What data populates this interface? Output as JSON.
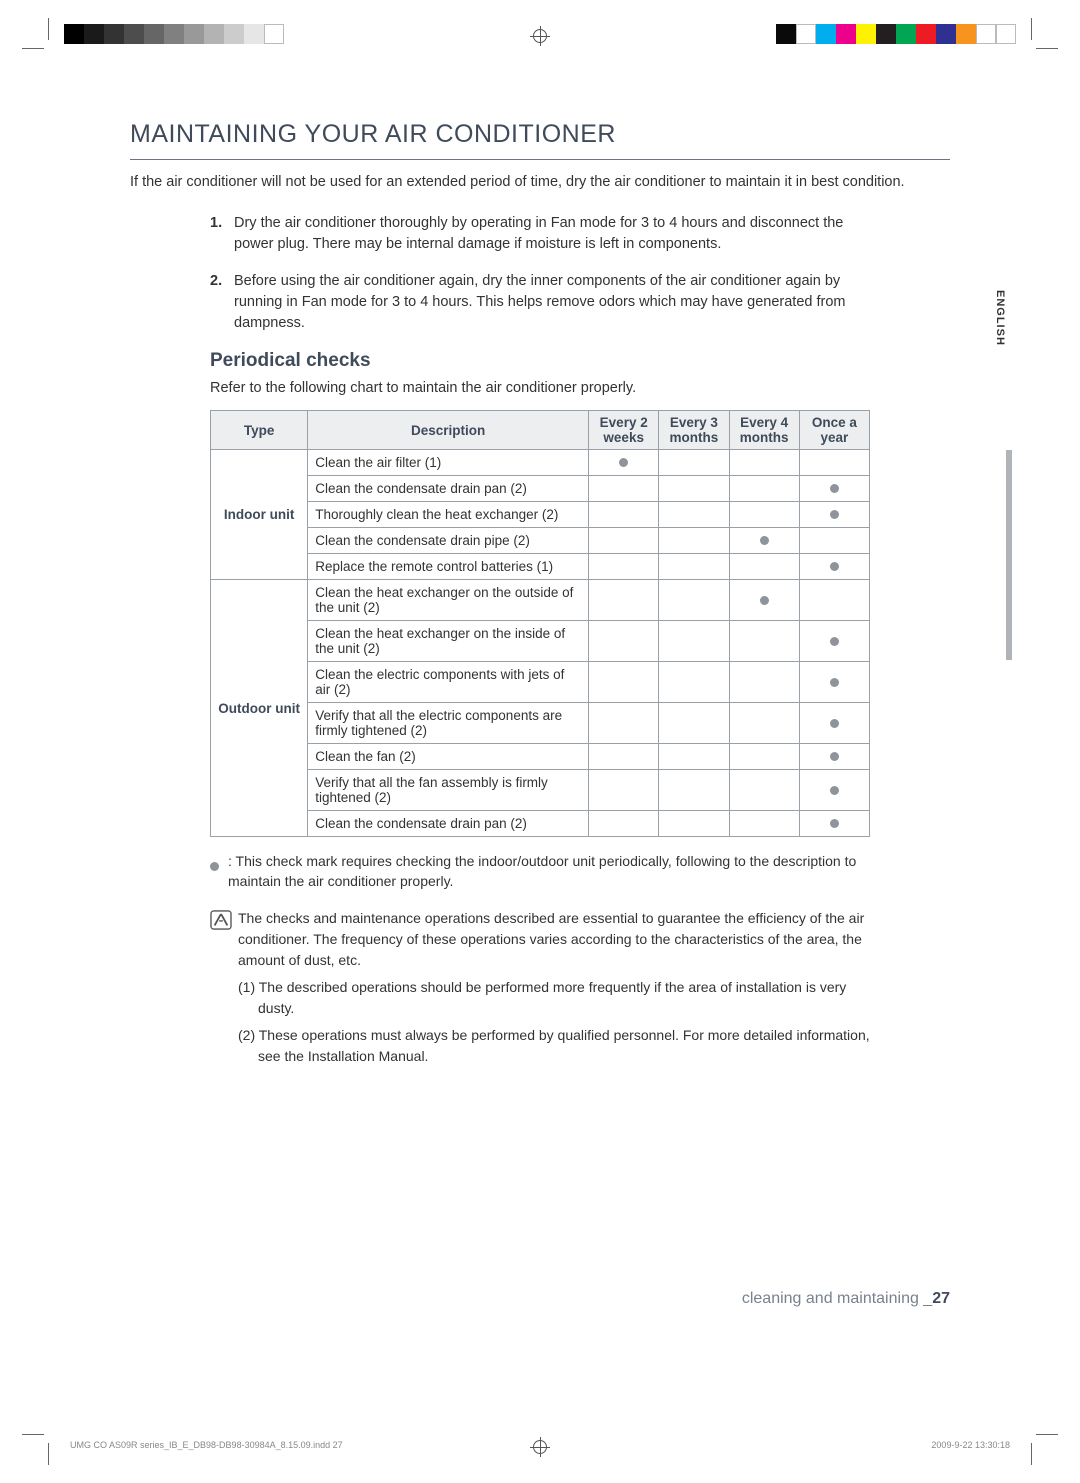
{
  "colorbar_left": [
    "#000000",
    "#1a1a1a",
    "#333333",
    "#4d4d4d",
    "#666666",
    "#808080",
    "#999999",
    "#b3b3b3",
    "#cccccc",
    "#e6e6e6",
    "#ffffff"
  ],
  "colorbar_right": [
    "#0a0a0a",
    "#ffffff",
    "#00aeef",
    "#ec008c",
    "#fff200",
    "#231f20",
    "#00a651",
    "#ed1c24",
    "#2e3192",
    "#f7941d",
    "#ffffff",
    "#ffffff"
  ],
  "lang_label": "ENGLISH",
  "h1": "MAINTAINING YOUR AIR CONDITIONER",
  "intro": "If the air conditioner will not be used for an extended period of time, dry the air conditioner to maintain it in best condition.",
  "steps": [
    "Dry the air conditioner thoroughly by operating in Fan mode for 3 to 4 hours and disconnect the power plug. There may be internal damage if moisture is left in components.",
    "Before using the air conditioner again, dry the inner components of the air conditioner again by running in Fan mode for 3 to 4 hours. This helps remove odors which may have generated from dampness."
  ],
  "h2": "Periodical checks",
  "sub_intro": "Refer to the following chart to maintain the air conditioner properly.",
  "table": {
    "headers": [
      "Type",
      "Description",
      "Every 2 weeks",
      "Every 3 months",
      "Every 4 months",
      "Once a year"
    ],
    "groups": [
      {
        "type": "Indoor unit",
        "rows": [
          {
            "desc": "Clean the air filter (1)",
            "marks": [
              true,
              false,
              false,
              false
            ]
          },
          {
            "desc": "Clean the condensate drain pan (2)",
            "marks": [
              false,
              false,
              false,
              true
            ]
          },
          {
            "desc": "Thoroughly clean the heat exchanger (2)",
            "marks": [
              false,
              false,
              false,
              true
            ]
          },
          {
            "desc": "Clean the condensate drain pipe (2)",
            "marks": [
              false,
              false,
              true,
              false
            ]
          },
          {
            "desc": "Replace the remote control batteries (1)",
            "marks": [
              false,
              false,
              false,
              true
            ]
          }
        ]
      },
      {
        "type": "Outdoor unit",
        "rows": [
          {
            "desc": "Clean the heat exchanger on the outside of the unit (2)",
            "marks": [
              false,
              false,
              true,
              false
            ]
          },
          {
            "desc": "Clean the heat exchanger on the inside of the unit (2)",
            "marks": [
              false,
              false,
              false,
              true
            ]
          },
          {
            "desc": "Clean the electric components with jets of air (2)",
            "marks": [
              false,
              false,
              false,
              true
            ]
          },
          {
            "desc": "Verify that all the electric components are firmly tightened (2)",
            "marks": [
              false,
              false,
              false,
              true
            ]
          },
          {
            "desc": "Clean the fan (2)",
            "marks": [
              false,
              false,
              false,
              true
            ]
          },
          {
            "desc": "Verify that all the fan assembly is firmly tightened (2)",
            "marks": [
              false,
              false,
              false,
              true
            ]
          },
          {
            "desc": "Clean the condensate drain pan (2)",
            "marks": [
              false,
              false,
              false,
              true
            ]
          }
        ]
      }
    ]
  },
  "legend": ": This check mark requires checking the indoor/outdoor unit periodically, following to the description to maintain the air conditioner properly.",
  "note": {
    "p1": "The checks and maintenance operations described are essential to guarantee the efficiency of the air conditioner. The frequency of these operations varies according to the characteristics of the area, the amount of dust, etc.",
    "p2": "(1) The described operations should be performed more frequently if the area of installation is very dusty.",
    "p3": "(2) These operations must always be performed by qualified personnel. For more detailed information, see the Installation Manual."
  },
  "footer": {
    "section": "cleaning and maintaining _",
    "page": "27"
  },
  "print_footer": {
    "left": "UMG CO AS09R series_IB_E_DB98-DB98-30984A_8.15.09.indd   27",
    "right": "2009-9-22   13:30:18"
  }
}
